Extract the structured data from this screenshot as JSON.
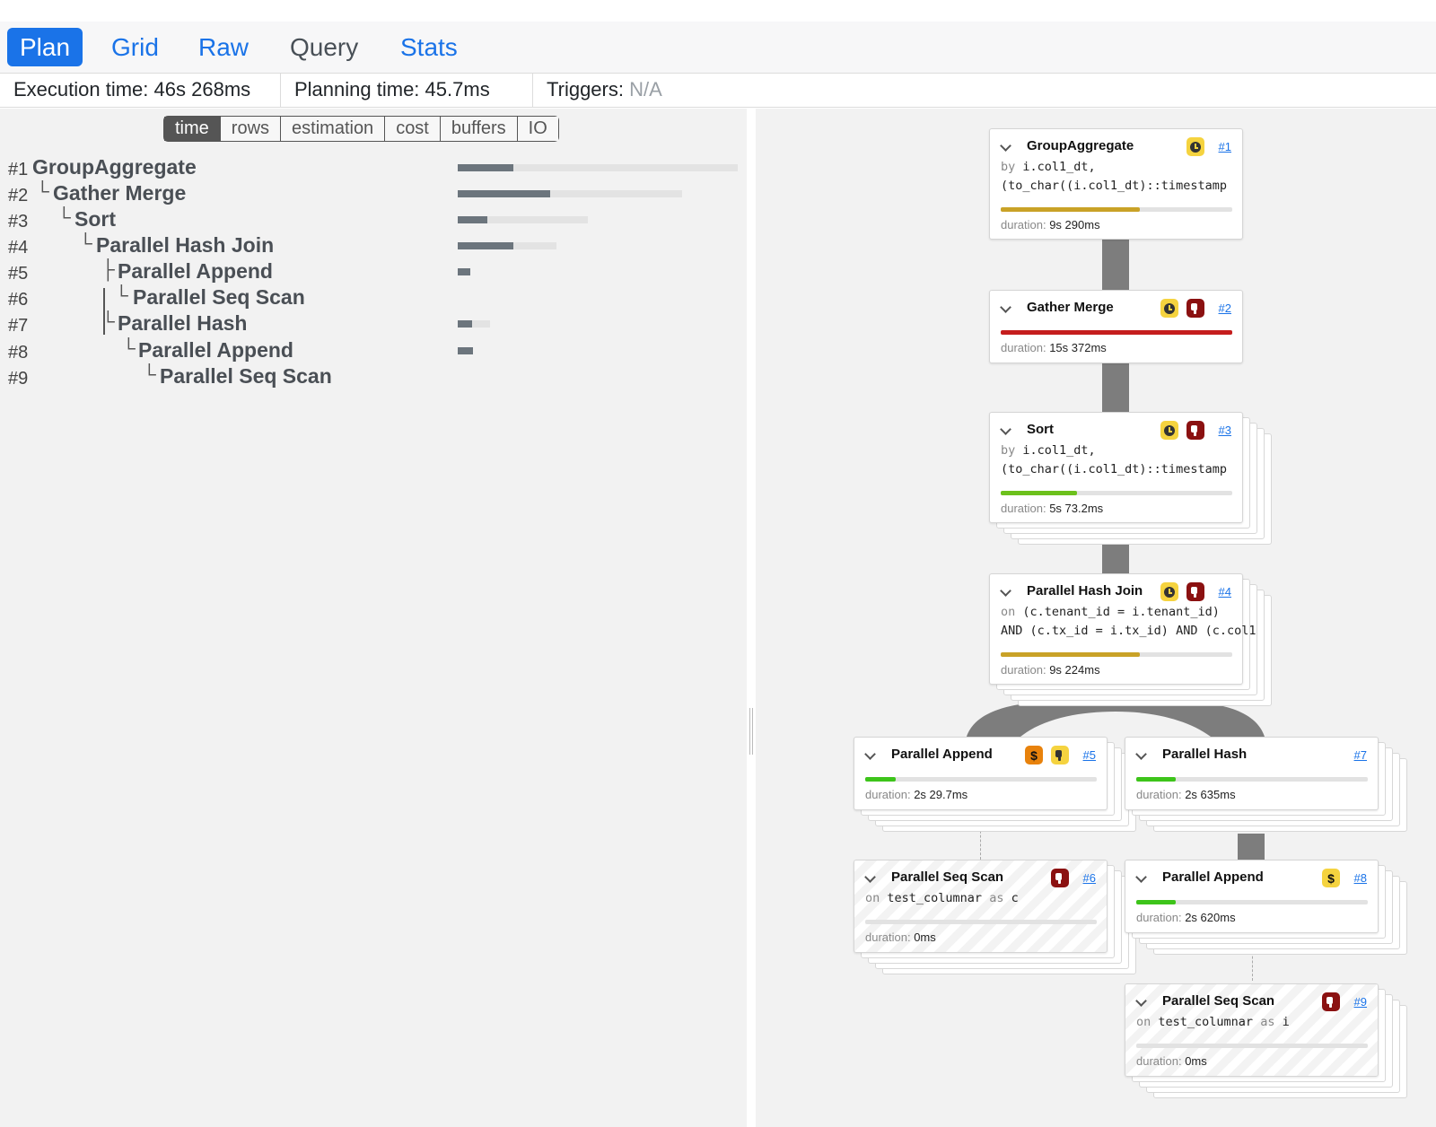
{
  "tabs": [
    {
      "label": "Plan",
      "active": true
    },
    {
      "label": "Grid",
      "active": false
    },
    {
      "label": "Raw",
      "active": false
    },
    {
      "label": "Query",
      "active": false
    },
    {
      "label": "Stats",
      "active": false
    }
  ],
  "info": {
    "execution_label": "Execution time:",
    "execution_value": "46s 268ms",
    "planning_label": "Planning time:",
    "planning_value": "45.7ms",
    "triggers_label": "Triggers:",
    "triggers_value": "N/A"
  },
  "metrics": [
    "time",
    "rows",
    "estimation",
    "cost",
    "buffers",
    "IO"
  ],
  "active_metric": "time",
  "tree_rows": [
    {
      "num": "#1",
      "prefix": "",
      "name": "GroupAggregate",
      "duration_fraction": 0.2
    },
    {
      "num": "#2",
      "prefix": "└",
      "name": "Gather Merge",
      "duration_fraction": 0.41
    },
    {
      "num": "#3",
      "prefix": "└",
      "name": "Sort",
      "duration_fraction": 0.23
    },
    {
      "num": "#4",
      "prefix": "└",
      "name": "Parallel Hash Join",
      "duration_fraction": 0.56
    },
    {
      "num": "#5",
      "prefix": "├",
      "name": "Parallel Append",
      "duration_fraction": 1.0
    },
    {
      "num": "#6",
      "prefix": "└",
      "name": "Parallel Seq Scan",
      "duration_fraction": 0
    },
    {
      "num": "#7",
      "prefix": "└",
      "name": "Parallel Hash",
      "duration_fraction": 0.45
    },
    {
      "num": "#8",
      "prefix": "└",
      "name": "Parallel Append",
      "duration_fraction": 1.0
    },
    {
      "num": "#9",
      "prefix": "└",
      "name": "Parallel Seq Scan",
      "duration_fraction": 0
    }
  ],
  "nodes": [
    {
      "id": "#1",
      "title": "GroupAggregate",
      "badges": [
        "clock"
      ],
      "lines": [
        {
          "kw": "by",
          "text": "i.col1_dt,"
        },
        {
          "kw": "",
          "text": "(to_char((i.col1_dt)::timestamp"
        }
      ],
      "bar_fraction": 0.6,
      "bar_color": "#c9a227",
      "duration_label": "duration:",
      "duration": "9s 290ms"
    },
    {
      "id": "#2",
      "title": "Gather Merge",
      "badges": [
        "clock",
        "thumb"
      ],
      "lines": [],
      "bar_fraction": 1.0,
      "bar_color": "#c51d1d",
      "duration_label": "duration:",
      "duration": "15s 372ms"
    },
    {
      "id": "#3",
      "title": "Sort",
      "badges": [
        "clock",
        "thumb"
      ],
      "lines": [
        {
          "kw": "by",
          "text": "i.col1_dt,"
        },
        {
          "kw": "",
          "text": "(to_char((i.col1_dt)::timestamp"
        }
      ],
      "bar_fraction": 0.33,
      "bar_color": "#6cc11c",
      "duration_label": "duration:",
      "duration": "5s 73.2ms"
    },
    {
      "id": "#4",
      "title": "Parallel Hash Join",
      "badges": [
        "clock",
        "thumb"
      ],
      "lines": [
        {
          "kw": "on",
          "text": "(c.tenant_id = i.tenant_id)"
        },
        {
          "kw": "",
          "text": "AND (c.tx_id = i.tx_id) AND (c.col1"
        }
      ],
      "bar_fraction": 0.6,
      "bar_color": "#c9a227",
      "duration_label": "duration:",
      "duration": "9s 224ms"
    },
    {
      "id": "#5",
      "title": "Parallel Append",
      "badges": [
        "dollar-o",
        "thumb-y"
      ],
      "lines": [],
      "bar_fraction": 0.13,
      "bar_color": "#3dc41a",
      "duration_label": "duration:",
      "duration": "2s 29.7ms"
    },
    {
      "id": "#6",
      "title": "Parallel Seq Scan",
      "badges": [
        "thumb"
      ],
      "lines": [
        {
          "kw": "on",
          "text": "test_columnar",
          "kw2": "as",
          "text2": "c"
        }
      ],
      "bar_fraction": 0,
      "bar_color": "#3dc41a",
      "duration_label": "duration:",
      "duration": "0ms"
    },
    {
      "id": "#7",
      "title": "Parallel Hash",
      "badges": [],
      "lines": [],
      "bar_fraction": 0.17,
      "bar_color": "#3dc41a",
      "duration_label": "duration:",
      "duration": "2s 635ms"
    },
    {
      "id": "#8",
      "title": "Parallel Append",
      "badges": [
        "dollar-y"
      ],
      "lines": [],
      "bar_fraction": 0.17,
      "bar_color": "#3dc41a",
      "duration_label": "duration:",
      "duration": "2s 620ms"
    },
    {
      "id": "#9",
      "title": "Parallel Seq Scan",
      "badges": [
        "thumb"
      ],
      "lines": [
        {
          "kw": "on",
          "text": "test_columnar",
          "kw2": "as",
          "text2": "i"
        }
      ],
      "bar_fraction": 0,
      "bar_color": "#3dc41a",
      "duration_label": "duration:",
      "duration": "0ms"
    }
  ]
}
